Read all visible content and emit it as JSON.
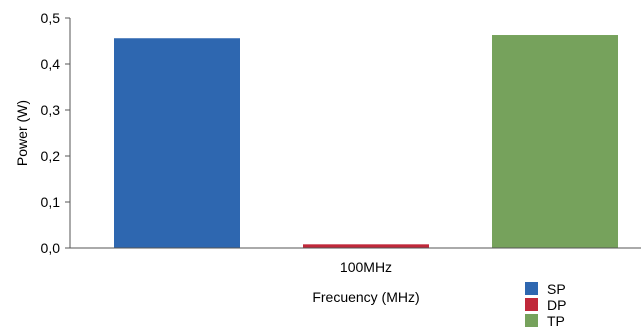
{
  "chart_data": {
    "type": "bar",
    "categories": [
      "100MHz"
    ],
    "series": [
      {
        "name": "SP",
        "values": [
          0.456
        ],
        "color": "#2E67B0"
      },
      {
        "name": "DP",
        "values": [
          0.008
        ],
        "color": "#C0283A"
      },
      {
        "name": "TP",
        "values": [
          0.463
        ],
        "color": "#76A25C"
      }
    ],
    "xlabel": "Frecuency (MHz)",
    "ylabel": "Power (W)",
    "ylim": [
      0,
      0.5
    ],
    "yticks": [
      "0,0",
      "0,1",
      "0,2",
      "0,3",
      "0,4",
      "0,5"
    ],
    "grid": false,
    "legend_position": "bottom-right"
  }
}
